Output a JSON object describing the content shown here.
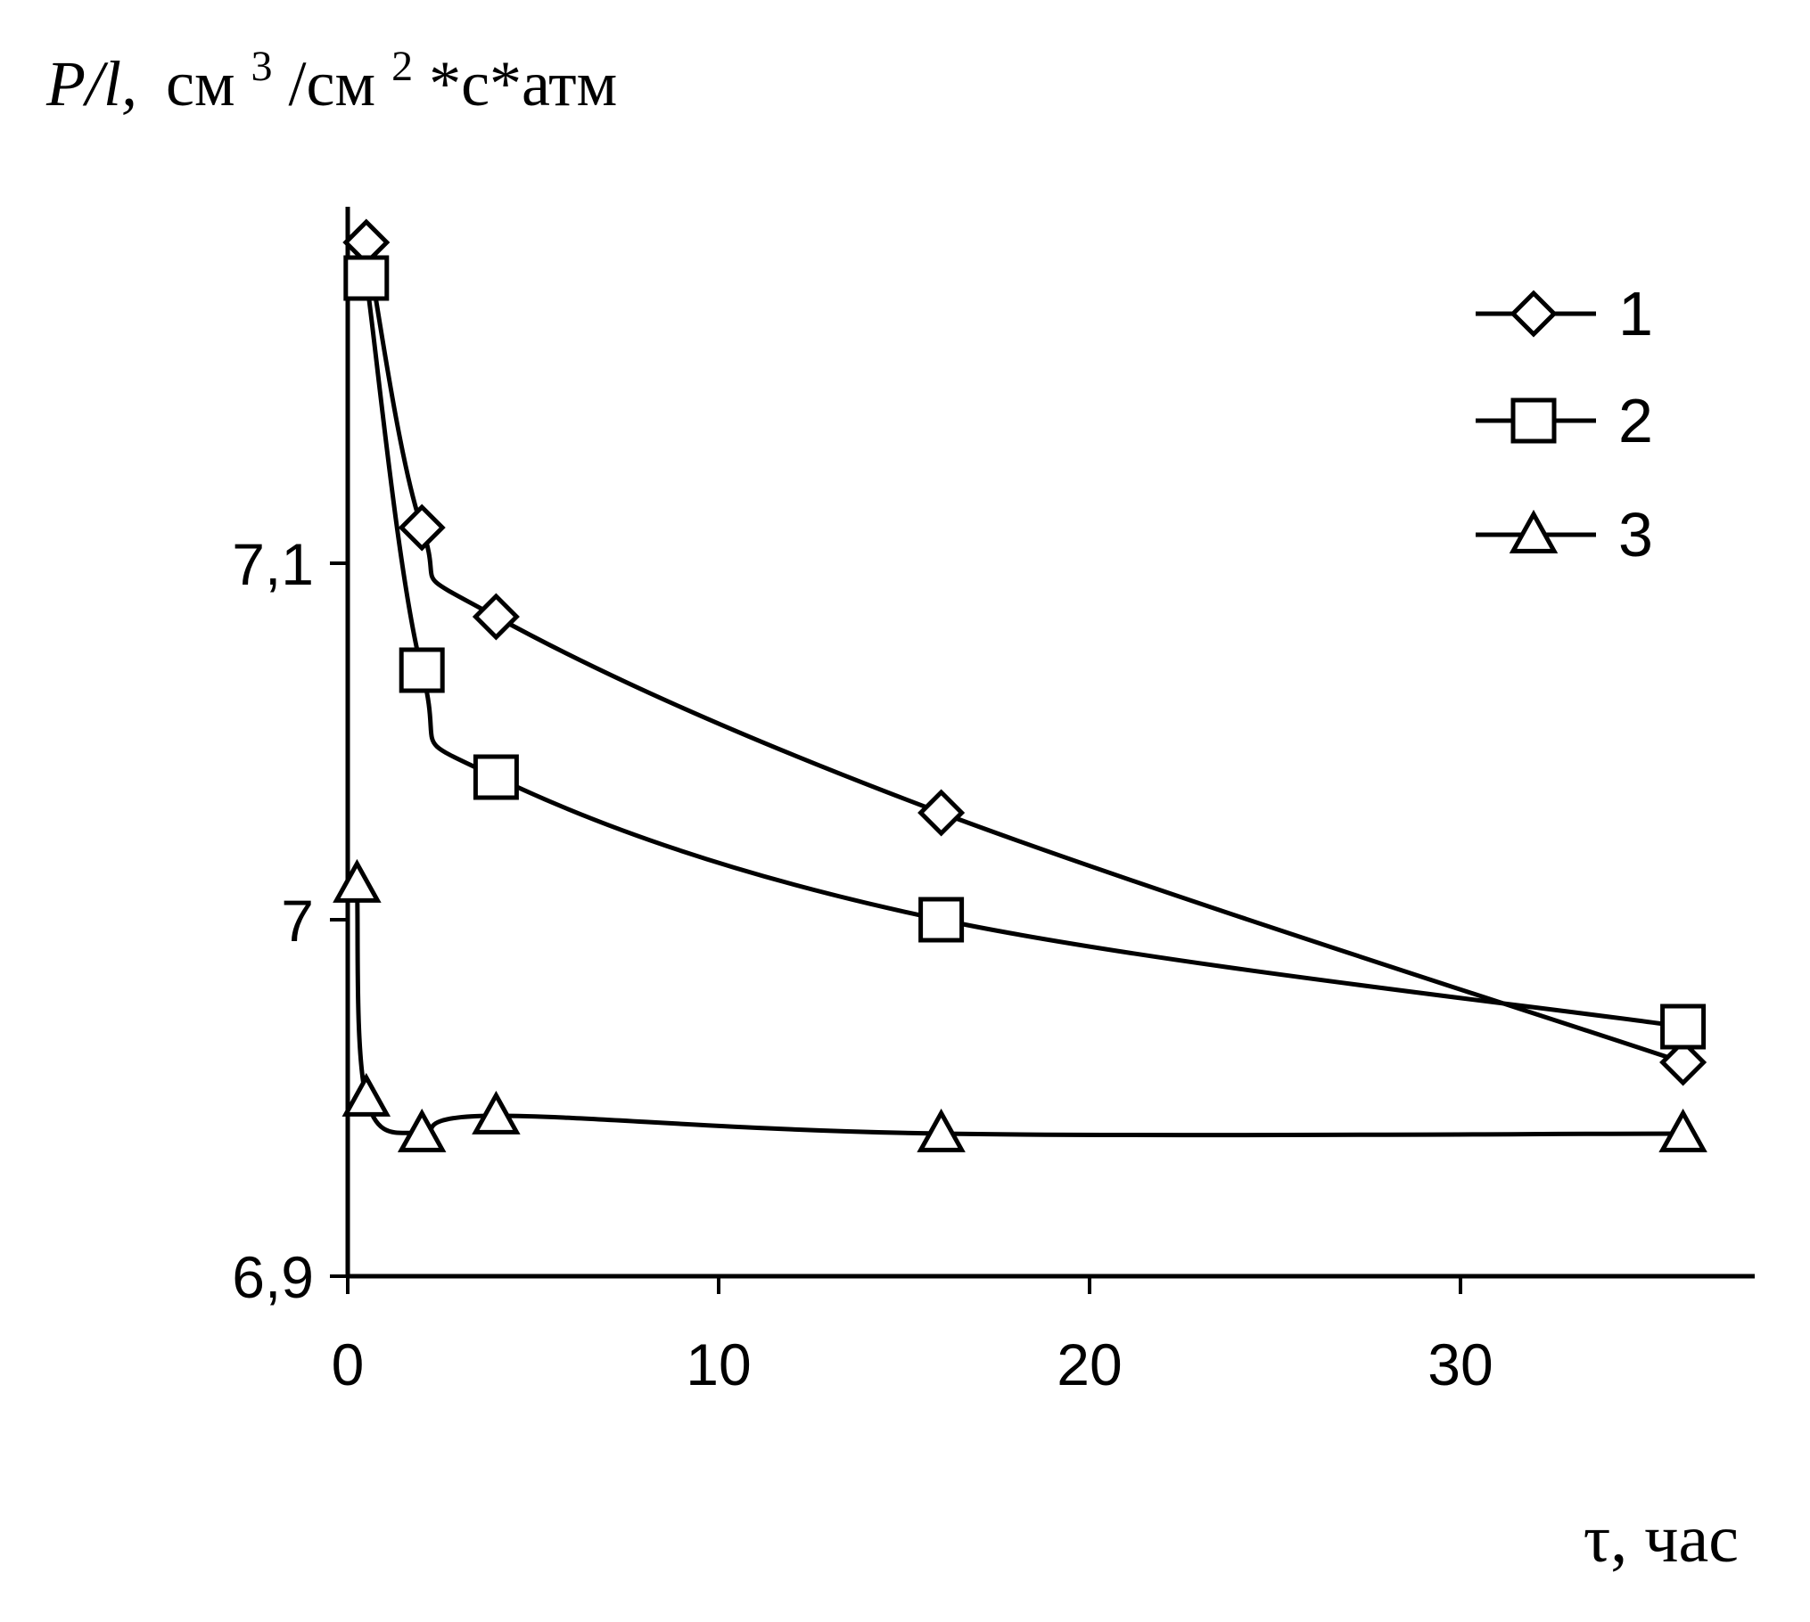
{
  "chart_data": {
    "type": "line",
    "ylabel": {
      "symbol": "P/l,",
      "unit_parts": [
        "см",
        "3",
        "/см",
        "2",
        "*с*атм"
      ]
    },
    "xlabel": "τ, час",
    "xlim": [
      0,
      37
    ],
    "ylim": [
      6.9,
      7.2
    ],
    "xticks": [
      "0",
      "10",
      "20",
      "30"
    ],
    "yticks": [
      "6,9",
      "7",
      "7,1"
    ],
    "grid": false,
    "legend_position": "top-right",
    "colors": {
      "line": "#000000",
      "marker_fill": "#ffffff"
    },
    "series": [
      {
        "name": "1",
        "marker": "diamond",
        "x": [
          0.5,
          2,
          4,
          16,
          36
        ],
        "y": [
          7.19,
          7.11,
          7.085,
          7.03,
          6.96
        ]
      },
      {
        "name": "2",
        "marker": "square",
        "x": [
          0.5,
          2,
          4,
          16,
          36
        ],
        "y": [
          7.18,
          7.07,
          7.04,
          7.0,
          6.97
        ]
      },
      {
        "name": "3",
        "marker": "triangle",
        "x": [
          0.25,
          0.5,
          2,
          4,
          16,
          36
        ],
        "y": [
          7.01,
          6.95,
          6.94,
          6.945,
          6.94,
          6.94
        ]
      }
    ]
  }
}
